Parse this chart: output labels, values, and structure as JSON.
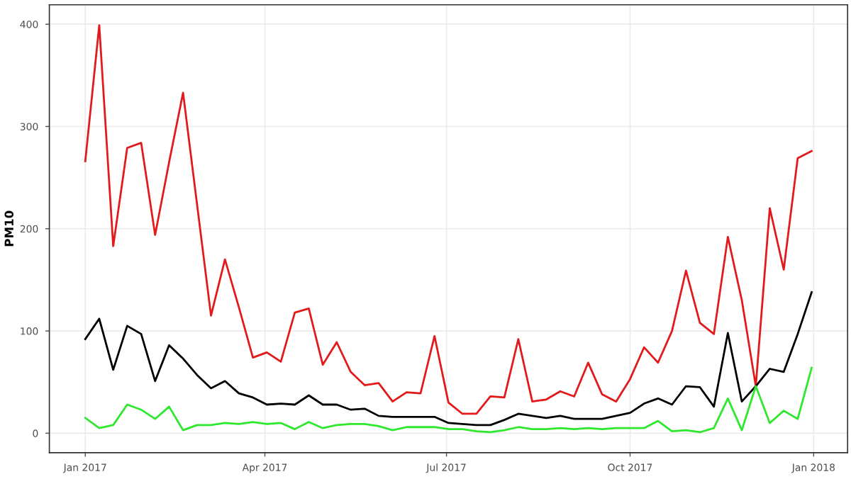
{
  "chart_data": {
    "type": "line",
    "ylabel": "PM10",
    "x": [
      "2017-01-01",
      "2017-01-08",
      "2017-01-15",
      "2017-01-22",
      "2017-01-29",
      "2017-02-05",
      "2017-02-12",
      "2017-02-19",
      "2017-02-26",
      "2017-03-05",
      "2017-03-12",
      "2017-03-19",
      "2017-03-26",
      "2017-04-02",
      "2017-04-09",
      "2017-04-16",
      "2017-04-23",
      "2017-04-30",
      "2017-05-07",
      "2017-05-14",
      "2017-05-21",
      "2017-05-28",
      "2017-06-04",
      "2017-06-11",
      "2017-06-18",
      "2017-06-25",
      "2017-07-02",
      "2017-07-09",
      "2017-07-16",
      "2017-07-23",
      "2017-07-30",
      "2017-08-06",
      "2017-08-13",
      "2017-08-20",
      "2017-08-27",
      "2017-09-03",
      "2017-09-10",
      "2017-09-17",
      "2017-09-24",
      "2017-10-01",
      "2017-10-08",
      "2017-10-15",
      "2017-10-22",
      "2017-10-29",
      "2017-11-05",
      "2017-11-12",
      "2017-11-19",
      "2017-11-26",
      "2017-12-03",
      "2017-12-10",
      "2017-12-17",
      "2017-12-24",
      "2017-12-31"
    ],
    "series": [
      {
        "color": "#e31a1c",
        "values": [
          266,
          399,
          183,
          279,
          284,
          194,
          265,
          333,
          224,
          115,
          170,
          123,
          74,
          79,
          70,
          118,
          122,
          67,
          89,
          60,
          47,
          49,
          31,
          40,
          39,
          95,
          30,
          19,
          19,
          36,
          35,
          92,
          31,
          33,
          41,
          36,
          69,
          38,
          31,
          53,
          84,
          69,
          100,
          159,
          108,
          97,
          192,
          130,
          46,
          220,
          160,
          269,
          276
        ]
      },
      {
        "color": "#000000",
        "values": [
          92,
          112,
          62,
          105,
          97,
          51,
          86,
          73,
          57,
          44,
          51,
          39,
          35,
          28,
          29,
          28,
          37,
          28,
          28,
          23,
          24,
          17,
          16,
          16,
          16,
          16,
          10,
          9,
          8,
          8,
          13,
          19,
          17,
          15,
          17,
          14,
          14,
          14,
          17,
          20,
          29,
          34,
          28,
          46,
          45,
          26,
          98,
          31,
          46,
          63,
          60,
          97,
          138
        ]
      },
      {
        "color": "#2ee82e",
        "values": [
          15,
          5,
          8,
          28,
          23,
          14,
          26,
          3,
          8,
          8,
          10,
          9,
          11,
          9,
          10,
          4,
          11,
          5,
          8,
          9,
          9,
          7,
          3,
          6,
          6,
          6,
          4,
          4,
          2,
          1,
          3,
          6,
          4,
          4,
          5,
          4,
          5,
          4,
          5,
          5,
          5,
          12,
          2,
          3,
          1,
          5,
          34,
          3,
          46,
          10,
          22,
          14,
          64
        ]
      }
    ],
    "xlim": [
      "2016-12-14",
      "2018-01-18"
    ],
    "xticks": [
      {
        "value": "2017-01-01",
        "label": "Jan 2017"
      },
      {
        "value": "2017-04-01",
        "label": "Apr 2017"
      },
      {
        "value": "2017-07-01",
        "label": "Jul 2017"
      },
      {
        "value": "2017-10-01",
        "label": "Oct 2017"
      },
      {
        "value": "2018-01-01",
        "label": "Jan 2018"
      }
    ],
    "ylim": [
      -19,
      419
    ],
    "yticks": [
      0,
      100,
      200,
      300,
      400
    ],
    "grid": true,
    "legend": false
  }
}
